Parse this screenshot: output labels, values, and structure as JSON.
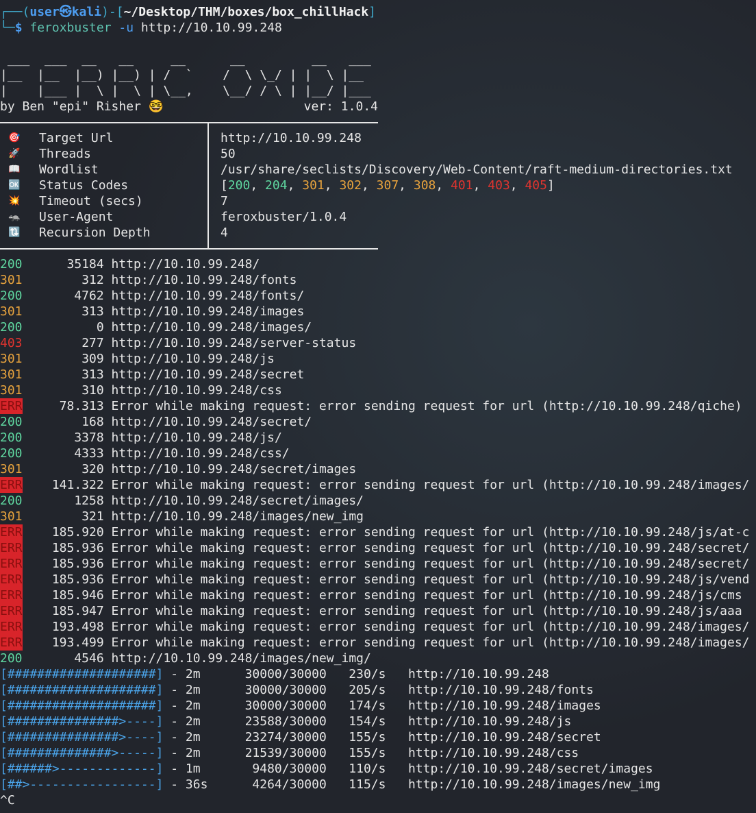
{
  "prompt": {
    "frame_open": "┌──(",
    "user": "user",
    "at": "㉿",
    "host": "kali",
    "frame_mid": ")-[",
    "cwd": "~/Desktop/THM/boxes/box_chillHack",
    "frame_close": "]",
    "frame2": "└─",
    "dollar": "$",
    "command": "feroxbuster",
    "flag": "-u",
    "arg": "http://10.10.99.248"
  },
  "banner": {
    "lines": [
      " ___  ___  __   __     __      __         __   ___",
      "|__  |__  |__) |__) | /  `    /  \\ \\_/ | |  \\ |__",
      "|    |___ |  \\ |  \\ | \\__,    \\__/ / \\ | |__/ |___"
    ],
    "author": "by Ben \"epi\" Risher 🤓",
    "version": "ver: 1.0.4"
  },
  "config": {
    "rows": [
      {
        "icon": "🎯",
        "label": "Target Url",
        "value": "http://10.10.99.248"
      },
      {
        "icon": "🚀",
        "label": "Threads",
        "value": "50"
      },
      {
        "icon": "📖",
        "label": "Wordlist",
        "value": "/usr/share/seclists/Discovery/Web-Content/raft-medium-directories.txt"
      },
      {
        "icon": "🆗",
        "label": "Status Codes",
        "value": [
          {
            "text": "[",
            "color": "#e6e6e6"
          },
          {
            "text": "200",
            "color": "#5fd7a0"
          },
          {
            "text": ", ",
            "color": "#e6e6e6"
          },
          {
            "text": "204",
            "color": "#5fd7a0"
          },
          {
            "text": ", ",
            "color": "#e6e6e6"
          },
          {
            "text": "301",
            "color": "#e8a33d"
          },
          {
            "text": ", ",
            "color": "#e6e6e6"
          },
          {
            "text": "302",
            "color": "#e8a33d"
          },
          {
            "text": ", ",
            "color": "#e6e6e6"
          },
          {
            "text": "307",
            "color": "#e8a33d"
          },
          {
            "text": ", ",
            "color": "#e6e6e6"
          },
          {
            "text": "308",
            "color": "#e8a33d"
          },
          {
            "text": ", ",
            "color": "#e6e6e6"
          },
          {
            "text": "401",
            "color": "#e0342f"
          },
          {
            "text": ", ",
            "color": "#e6e6e6"
          },
          {
            "text": "403",
            "color": "#e0342f"
          },
          {
            "text": ", ",
            "color": "#e6e6e6"
          },
          {
            "text": "405",
            "color": "#e0342f"
          },
          {
            "text": "]",
            "color": "#e6e6e6"
          }
        ]
      },
      {
        "icon": "💥",
        "label": "Timeout (secs)",
        "value": "7"
      },
      {
        "icon": "🦡",
        "label": "User-Agent",
        "value": "feroxbuster/1.0.4"
      },
      {
        "icon": "🔃",
        "label": "Recursion Depth",
        "value": "4"
      }
    ]
  },
  "status_colors": {
    "200": "#5fd7a0",
    "301": "#e8a33d",
    "403": "#e0342f",
    "ERR": "#8a0f0f"
  },
  "results": [
    {
      "status": "200",
      "size": "35184",
      "url": "http://10.10.99.248/"
    },
    {
      "status": "301",
      "size": "312",
      "url": "http://10.10.99.248/fonts"
    },
    {
      "status": "200",
      "size": "4762",
      "url": "http://10.10.99.248/fonts/"
    },
    {
      "status": "301",
      "size": "313",
      "url": "http://10.10.99.248/images"
    },
    {
      "status": "200",
      "size": "0",
      "url": "http://10.10.99.248/images/"
    },
    {
      "status": "403",
      "size": "277",
      "url": "http://10.10.99.248/server-status"
    },
    {
      "status": "301",
      "size": "309",
      "url": "http://10.10.99.248/js"
    },
    {
      "status": "301",
      "size": "313",
      "url": "http://10.10.99.248/secret"
    },
    {
      "status": "301",
      "size": "310",
      "url": "http://10.10.99.248/css"
    },
    {
      "status": "ERR",
      "size": "78.313",
      "url": "Error while making request: error sending request for url (http://10.10.99.248/qiche)"
    },
    {
      "status": "200",
      "size": "168",
      "url": "http://10.10.99.248/secret/"
    },
    {
      "status": "200",
      "size": "3378",
      "url": "http://10.10.99.248/js/"
    },
    {
      "status": "200",
      "size": "4333",
      "url": "http://10.10.99.248/css/"
    },
    {
      "status": "301",
      "size": "320",
      "url": "http://10.10.99.248/secret/images"
    },
    {
      "status": "ERR",
      "size": "141.322",
      "url": "Error while making request: error sending request for url (http://10.10.99.248/images/"
    },
    {
      "status": "200",
      "size": "1258",
      "url": "http://10.10.99.248/secret/images/"
    },
    {
      "status": "301",
      "size": "321",
      "url": "http://10.10.99.248/images/new_img"
    },
    {
      "status": "ERR",
      "size": "185.920",
      "url": "Error while making request: error sending request for url (http://10.10.99.248/js/at-c"
    },
    {
      "status": "ERR",
      "size": "185.936",
      "url": "Error while making request: error sending request for url (http://10.10.99.248/secret/"
    },
    {
      "status": "ERR",
      "size": "185.936",
      "url": "Error while making request: error sending request for url (http://10.10.99.248/secret/"
    },
    {
      "status": "ERR",
      "size": "185.936",
      "url": "Error while making request: error sending request for url (http://10.10.99.248/js/vend"
    },
    {
      "status": "ERR",
      "size": "185.946",
      "url": "Error while making request: error sending request for url (http://10.10.99.248/js/cms"
    },
    {
      "status": "ERR",
      "size": "185.947",
      "url": "Error while making request: error sending request for url (http://10.10.99.248/js/aaa"
    },
    {
      "status": "ERR",
      "size": "193.498",
      "url": "Error while making request: error sending request for url (http://10.10.99.248/images/"
    },
    {
      "status": "ERR",
      "size": "193.499",
      "url": "Error while making request: error sending request for url (http://10.10.99.248/images/"
    },
    {
      "status": "200",
      "size": "4546",
      "url": "http://10.10.99.248/images/new_img/"
    }
  ],
  "progress": {
    "separator": "-",
    "rows": [
      {
        "bar": "[####################]",
        "time": "2m",
        "count": "30000/30000",
        "rate": "230/s",
        "url": "http://10.10.99.248"
      },
      {
        "bar": "[####################]",
        "time": "2m",
        "count": "30000/30000",
        "rate": "205/s",
        "url": "http://10.10.99.248/fonts"
      },
      {
        "bar": "[####################]",
        "time": "2m",
        "count": "30000/30000",
        "rate": "174/s",
        "url": "http://10.10.99.248/images"
      },
      {
        "bar": "[###############>----]",
        "time": "2m",
        "count": "23588/30000",
        "rate": "154/s",
        "url": "http://10.10.99.248/js"
      },
      {
        "bar": "[###############>----]",
        "time": "2m",
        "count": "23274/30000",
        "rate": "155/s",
        "url": "http://10.10.99.248/secret"
      },
      {
        "bar": "[##############>-----]",
        "time": "2m",
        "count": "21539/30000",
        "rate": "155/s",
        "url": "http://10.10.99.248/css"
      },
      {
        "bar": "[######>-------------]",
        "time": "1m",
        "count": "9480/30000",
        "rate": "110/s",
        "url": "http://10.10.99.248/secret/images"
      },
      {
        "bar": "[##>-----------------]",
        "time": "36s",
        "count": "4264/30000",
        "rate": "115/s",
        "url": "http://10.10.99.248/images/new_img"
      }
    ]
  },
  "interrupt": "^C"
}
